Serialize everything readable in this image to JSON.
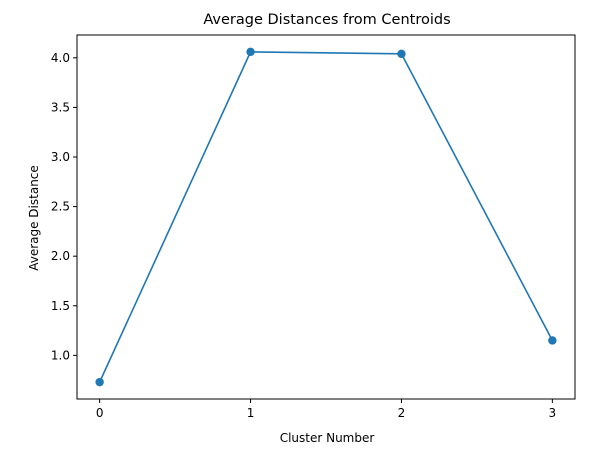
{
  "chart_data": {
    "type": "line",
    "title": "Average Distances from Centroids",
    "xlabel": "Cluster Number",
    "ylabel": "Average Distance",
    "x": [
      0,
      1,
      2,
      3
    ],
    "x_tick_labels": [
      "0",
      "1",
      "2",
      "3"
    ],
    "y_ticks": [
      1.0,
      1.5,
      2.0,
      2.5,
      3.0,
      3.5,
      4.0
    ],
    "y_tick_labels": [
      "1.0",
      "1.5",
      "2.0",
      "2.5",
      "3.0",
      "3.5",
      "4.0"
    ],
    "series": [
      {
        "values": [
          0.73,
          4.06,
          4.04,
          1.15
        ],
        "color": "#1f77b4",
        "marker": "circle"
      }
    ],
    "xlim": [
      -0.15,
      3.15
    ],
    "ylim": [
      0.56,
      4.23
    ],
    "grid": false,
    "legend": "none"
  }
}
